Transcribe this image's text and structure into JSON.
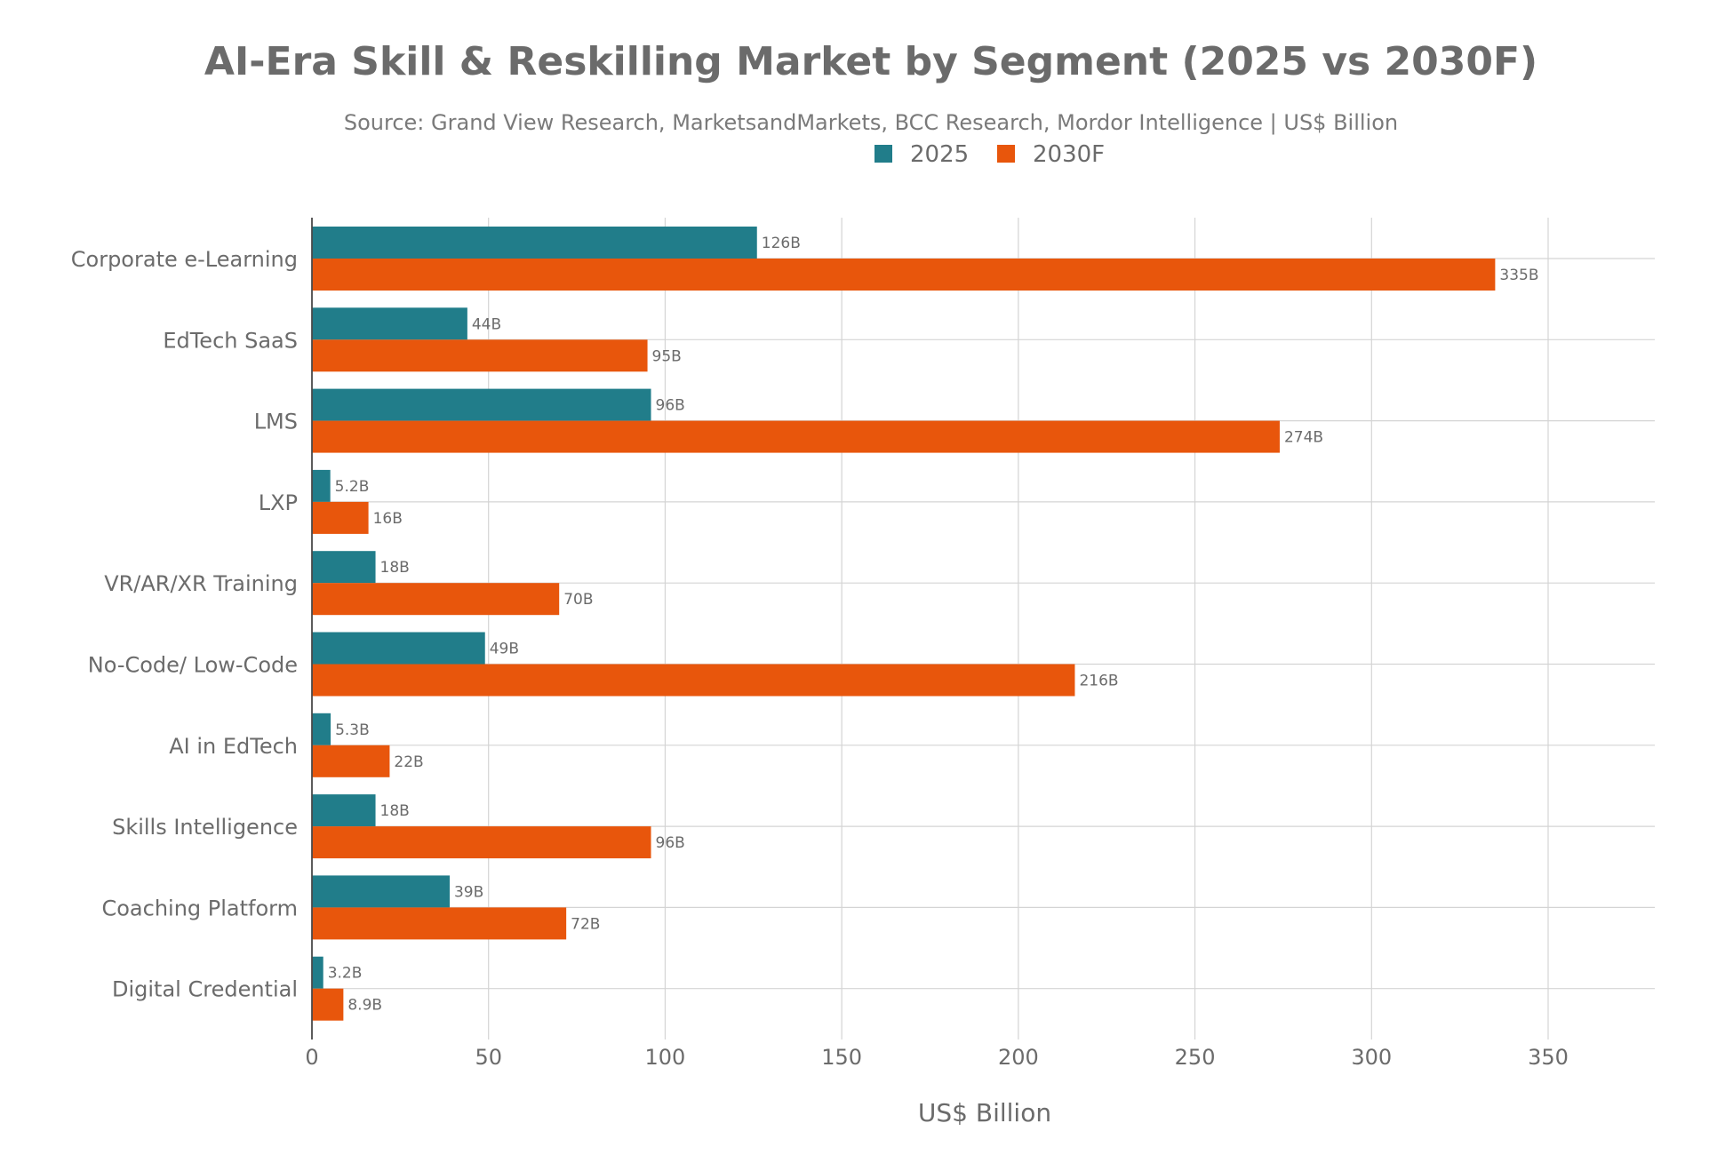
{
  "chart_data": {
    "type": "bar",
    "orientation": "horizontal",
    "title": "AI-Era Skill & Reskilling Market by Segment (2025 vs 2030F)",
    "subtitle": "Source: Grand View Research, MarketsandMarkets, BCC Research, Mordor Intelligence | US$ Billion",
    "xlabel": "US$ Billion",
    "ylabel": "",
    "xlim": [
      0,
      380
    ],
    "xticks": [
      0,
      50,
      100,
      150,
      200,
      250,
      300,
      350
    ],
    "grid": true,
    "legend_position": "top-center",
    "categories": [
      "Corporate e-Learning",
      "EdTech SaaS",
      "LMS",
      "LXP",
      "VR/AR/XR Training",
      "No-Code/ Low-Code",
      "AI in EdTech",
      "Skills Intelligence",
      "Coaching Platform",
      "Digital Credential"
    ],
    "series": [
      {
        "name": "2025",
        "color": "#217d8a",
        "values": [
          126,
          44,
          96,
          5.2,
          18,
          49,
          5.3,
          18,
          39,
          3.2
        ],
        "labels": [
          "126B",
          "44B",
          "96B",
          "5.2B",
          "18B",
          "49B",
          "5.3B",
          "18B",
          "39B",
          "3.2B"
        ]
      },
      {
        "name": "2030F",
        "color": "#e8560c",
        "values": [
          335,
          95,
          274,
          16,
          70,
          216,
          22,
          96,
          72,
          8.9
        ],
        "labels": [
          "335B",
          "95B",
          "274B",
          "16B",
          "70B",
          "216B",
          "22B",
          "96B",
          "72B",
          "8.9B"
        ]
      }
    ]
  }
}
